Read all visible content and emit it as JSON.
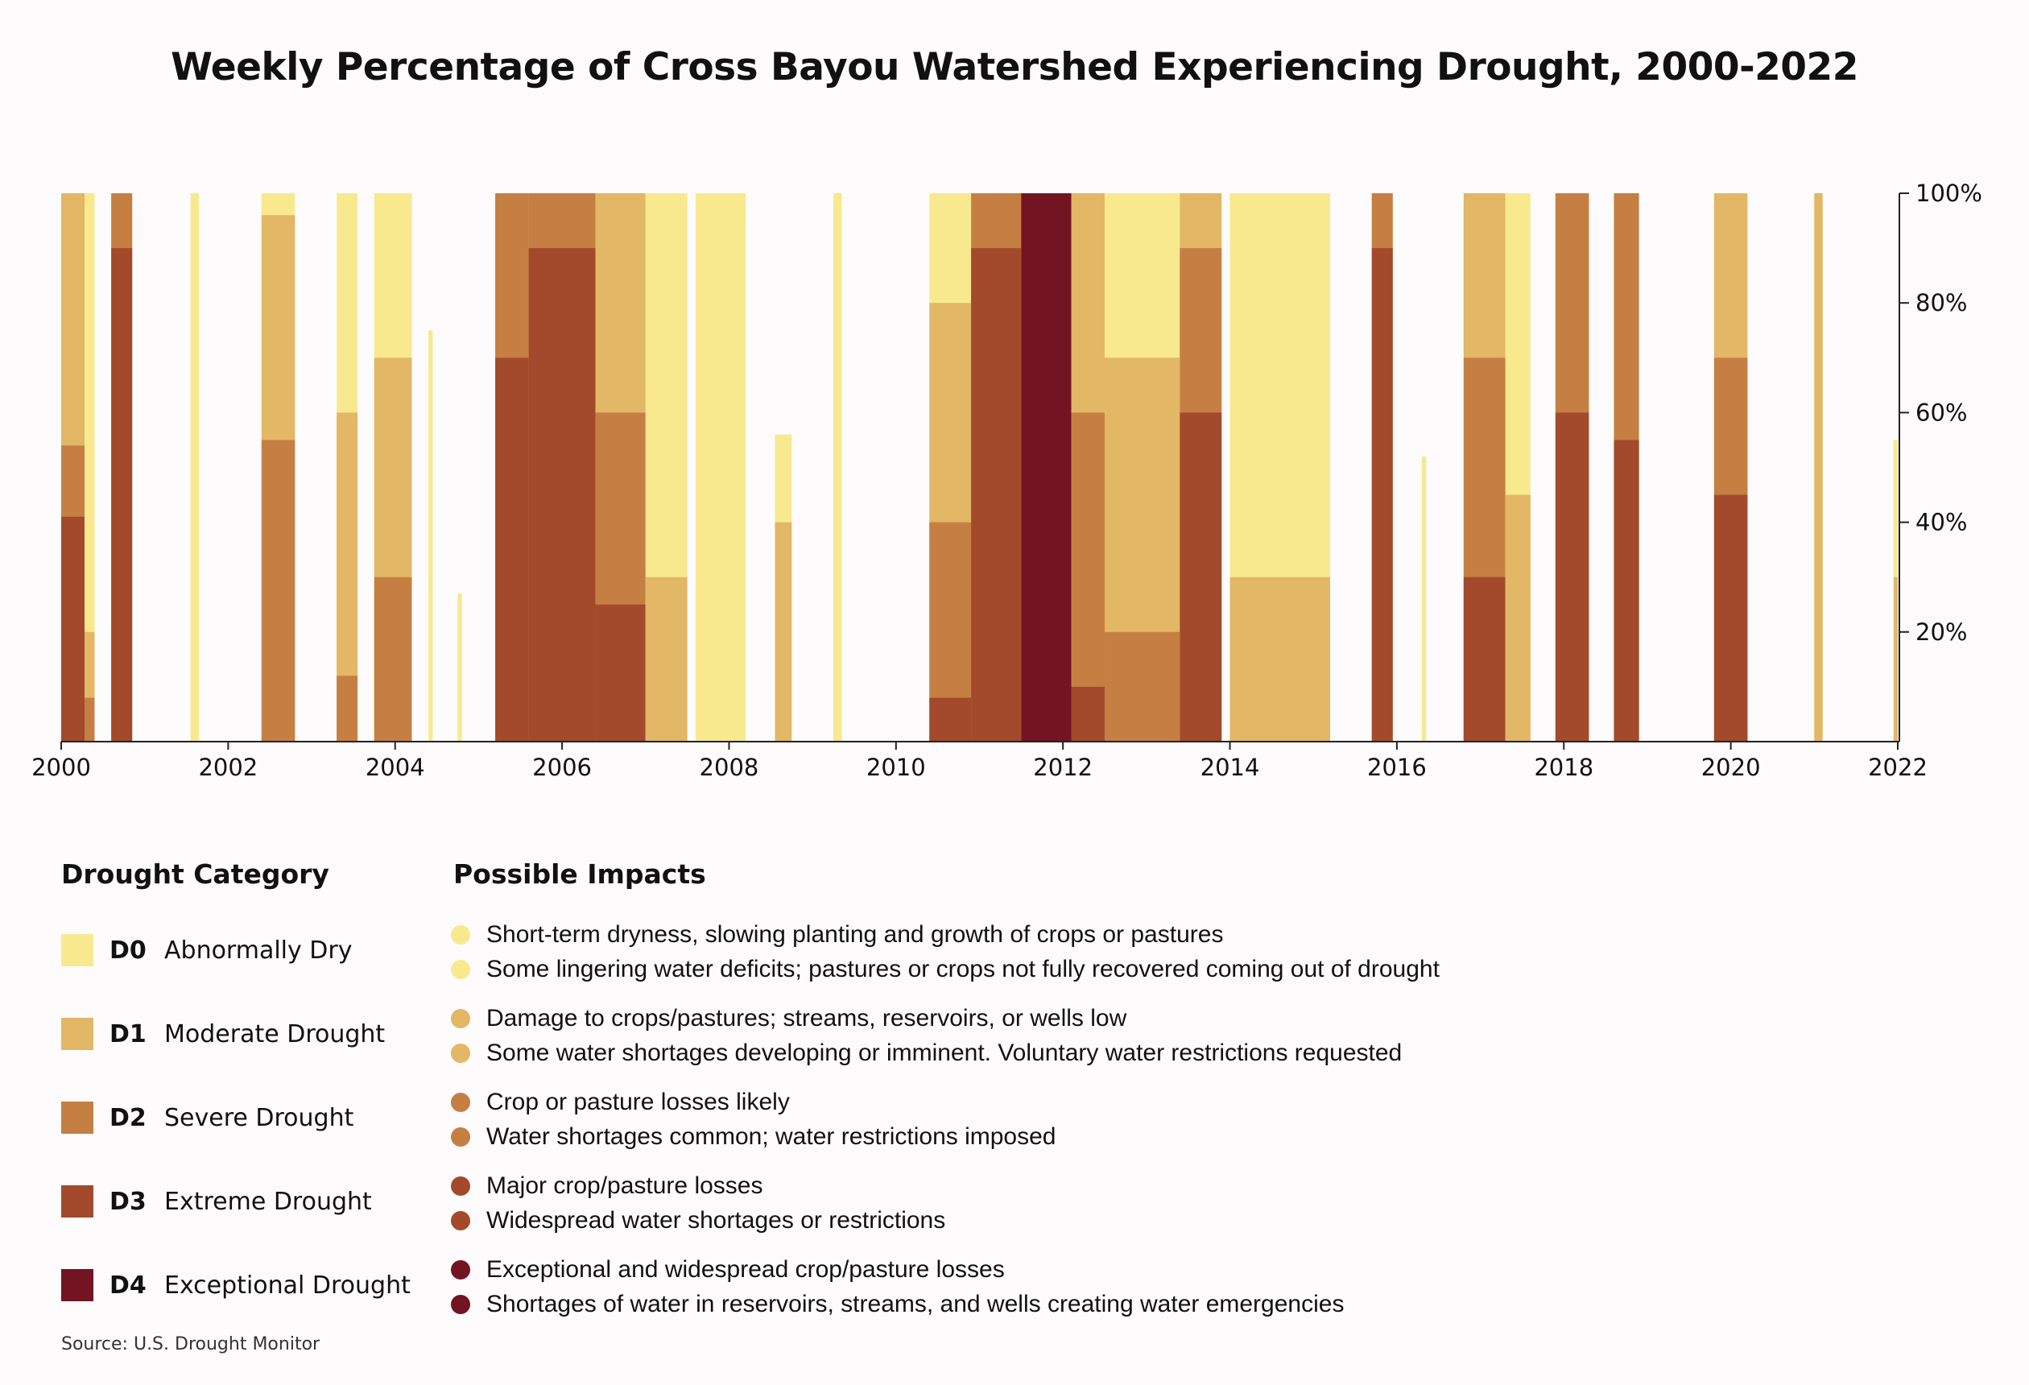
{
  "chart_data": {
    "type": "area",
    "title": "Weekly Percentage of Cross Bayou Watershed Experiencing Drought, 2000-2022",
    "xlabel": "",
    "ylabel": "",
    "xlim": [
      2000,
      2022
    ],
    "ylim": [
      0,
      100
    ],
    "x_ticks": [
      "2000",
      "2002",
      "2004",
      "2006",
      "2008",
      "2010",
      "2012",
      "2014",
      "2016",
      "2018",
      "2020",
      "2022"
    ],
    "y_ticks": [
      "20%",
      "40%",
      "60%",
      "80%",
      "100%"
    ],
    "y_tick_values": [
      20,
      40,
      60,
      80,
      100
    ],
    "y_axis_side": "right",
    "categories": [
      "D0",
      "D1",
      "D2",
      "D3",
      "D4"
    ],
    "colors": {
      "D0": "#f8e98f",
      "D1": "#e2b765",
      "D2": "#c67f43",
      "D3": "#a34a2c",
      "D4": "#731422"
    },
    "episodes": [
      {
        "start": 2000.0,
        "end": 2000.28,
        "D0": 100,
        "D1": 100,
        "D2": 54,
        "D3": 41,
        "D4": 0
      },
      {
        "start": 2000.28,
        "end": 2000.4,
        "D0": 100,
        "D1": 20,
        "D2": 8,
        "D3": 0,
        "D4": 0
      },
      {
        "start": 2000.6,
        "end": 2000.85,
        "D0": 100,
        "D1": 100,
        "D2": 100,
        "D3": 90,
        "D4": 0
      },
      {
        "start": 2001.55,
        "end": 2001.65,
        "D0": 100,
        "D1": 0,
        "D2": 0,
        "D3": 0,
        "D4": 0
      },
      {
        "start": 2002.4,
        "end": 2002.8,
        "D0": 100,
        "D1": 96,
        "D2": 55,
        "D3": 0,
        "D4": 0
      },
      {
        "start": 2003.3,
        "end": 2003.55,
        "D0": 100,
        "D1": 60,
        "D2": 12,
        "D3": 0,
        "D4": 0
      },
      {
        "start": 2003.75,
        "end": 2004.2,
        "D0": 100,
        "D1": 70,
        "D2": 30,
        "D3": 0,
        "D4": 0
      },
      {
        "start": 2004.4,
        "end": 2004.45,
        "D0": 75,
        "D1": 0,
        "D2": 0,
        "D3": 0,
        "D4": 0
      },
      {
        "start": 2004.75,
        "end": 2004.8,
        "D0": 27,
        "D1": 0,
        "D2": 0,
        "D3": 0,
        "D4": 0
      },
      {
        "start": 2005.2,
        "end": 2005.6,
        "D0": 100,
        "D1": 100,
        "D2": 100,
        "D3": 70,
        "D4": 0
      },
      {
        "start": 2005.6,
        "end": 2006.4,
        "D0": 100,
        "D1": 100,
        "D2": 100,
        "D3": 90,
        "D4": 0
      },
      {
        "start": 2006.4,
        "end": 2007.0,
        "D0": 100,
        "D1": 100,
        "D2": 60,
        "D3": 25,
        "D4": 0
      },
      {
        "start": 2007.0,
        "end": 2007.5,
        "D0": 100,
        "D1": 30,
        "D2": 0,
        "D3": 0,
        "D4": 0
      },
      {
        "start": 2007.6,
        "end": 2008.2,
        "D0": 100,
        "D1": 0,
        "D2": 0,
        "D3": 0,
        "D4": 0
      },
      {
        "start": 2008.55,
        "end": 2008.75,
        "D0": 56,
        "D1": 40,
        "D2": 0,
        "D3": 0,
        "D4": 0
      },
      {
        "start": 2009.25,
        "end": 2009.35,
        "D0": 100,
        "D1": 0,
        "D2": 0,
        "D3": 0,
        "D4": 0
      },
      {
        "start": 2010.4,
        "end": 2010.9,
        "D0": 100,
        "D1": 80,
        "D2": 40,
        "D3": 8,
        "D4": 0
      },
      {
        "start": 2010.9,
        "end": 2011.5,
        "D0": 100,
        "D1": 100,
        "D2": 100,
        "D3": 90,
        "D4": 0
      },
      {
        "start": 2011.5,
        "end": 2012.1,
        "D0": 100,
        "D1": 100,
        "D2": 100,
        "D3": 100,
        "D4": 100
      },
      {
        "start": 2012.1,
        "end": 2012.5,
        "D0": 100,
        "D1": 100,
        "D2": 60,
        "D3": 10,
        "D4": 0
      },
      {
        "start": 2012.5,
        "end": 2013.4,
        "D0": 100,
        "D1": 70,
        "D2": 20,
        "D3": 0,
        "D4": 0
      },
      {
        "start": 2013.4,
        "end": 2013.9,
        "D0": 100,
        "D1": 100,
        "D2": 90,
        "D3": 60,
        "D4": 0
      },
      {
        "start": 2014.0,
        "end": 2015.2,
        "D0": 100,
        "D1": 30,
        "D2": 0,
        "D3": 0,
        "D4": 0
      },
      {
        "start": 2015.7,
        "end": 2015.95,
        "D0": 100,
        "D1": 100,
        "D2": 100,
        "D3": 90,
        "D4": 0
      },
      {
        "start": 2016.3,
        "end": 2016.35,
        "D0": 52,
        "D1": 0,
        "D2": 0,
        "D3": 0,
        "D4": 0
      },
      {
        "start": 2016.8,
        "end": 2017.3,
        "D0": 100,
        "D1": 100,
        "D2": 70,
        "D3": 30,
        "D4": 0
      },
      {
        "start": 2017.3,
        "end": 2017.6,
        "D0": 100,
        "D1": 45,
        "D2": 0,
        "D3": 0,
        "D4": 0
      },
      {
        "start": 2017.9,
        "end": 2018.3,
        "D0": 100,
        "D1": 100,
        "D2": 100,
        "D3": 60,
        "D4": 0
      },
      {
        "start": 2018.6,
        "end": 2018.9,
        "D0": 100,
        "D1": 100,
        "D2": 100,
        "D3": 55,
        "D4": 0
      },
      {
        "start": 2019.8,
        "end": 2020.2,
        "D0": 100,
        "D1": 100,
        "D2": 70,
        "D3": 45,
        "D4": 0
      },
      {
        "start": 2021.0,
        "end": 2021.1,
        "D0": 100,
        "D1": 100,
        "D2": 0,
        "D3": 0,
        "D4": 0
      },
      {
        "start": 2021.95,
        "end": 2022.0,
        "D0": 55,
        "D1": 30,
        "D2": 0,
        "D3": 0,
        "D4": 0
      }
    ]
  },
  "legend": {
    "category_heading": "Drought Category",
    "impacts_heading": "Possible Impacts",
    "categories": [
      {
        "code": "D0",
        "label": "Abnormally Dry",
        "color": "#f8e98f",
        "impacts": [
          "Short-term dryness, slowing planting and growth of crops or pastures",
          "Some lingering water deficits; pastures or crops not fully recovered coming out of drought"
        ]
      },
      {
        "code": "D1",
        "label": "Moderate Drought",
        "color": "#e2b765",
        "impacts": [
          "Damage to crops/pastures; streams, reservoirs, or wells low",
          "Some water shortages developing or imminent. Voluntary water restrictions requested"
        ]
      },
      {
        "code": "D2",
        "label": "Severe Drought",
        "color": "#c67f43",
        "impacts": [
          "Crop or pasture losses likely",
          "Water shortages common; water restrictions imposed"
        ]
      },
      {
        "code": "D3",
        "label": "Extreme Drought",
        "color": "#a34a2c",
        "impacts": [
          "Major crop/pasture losses",
          "Widespread water shortages or restrictions"
        ]
      },
      {
        "code": "D4",
        "label": "Exceptional Drought",
        "color": "#731422",
        "impacts": [
          "Exceptional and widespread crop/pasture losses",
          "Shortages of water in reservoirs, streams, and wells creating water emergencies"
        ]
      }
    ]
  },
  "source": "Source: U.S. Drought Monitor"
}
